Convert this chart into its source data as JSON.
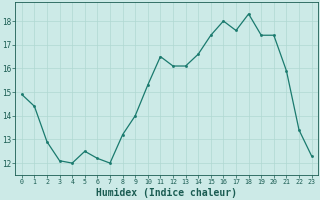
{
  "x": [
    0,
    1,
    2,
    3,
    4,
    5,
    6,
    7,
    8,
    9,
    10,
    11,
    12,
    13,
    14,
    15,
    16,
    17,
    18,
    19,
    20,
    21,
    22,
    23
  ],
  "y": [
    14.9,
    14.4,
    12.9,
    12.1,
    12.0,
    12.5,
    12.2,
    12.0,
    13.2,
    14.0,
    15.3,
    16.5,
    16.1,
    16.1,
    16.6,
    17.4,
    18.0,
    17.6,
    18.3,
    17.4,
    17.4,
    15.9,
    13.4,
    12.3
  ],
  "line_color": "#1a7a6e",
  "marker": "o",
  "marker_size": 1.5,
  "bg_color": "#cceae7",
  "grid_color": "#b0d8d2",
  "tick_color": "#1a5c52",
  "xlabel": "Humidex (Indice chaleur)",
  "xlabel_fontsize": 7,
  "xlim": [
    -0.5,
    23.5
  ],
  "ylim": [
    11.5,
    18.8
  ],
  "yticks": [
    12,
    13,
    14,
    15,
    16,
    17,
    18
  ],
  "xticks": [
    0,
    1,
    2,
    3,
    4,
    5,
    6,
    7,
    8,
    9,
    10,
    11,
    12,
    13,
    14,
    15,
    16,
    17,
    18,
    19,
    20,
    21,
    22,
    23
  ]
}
